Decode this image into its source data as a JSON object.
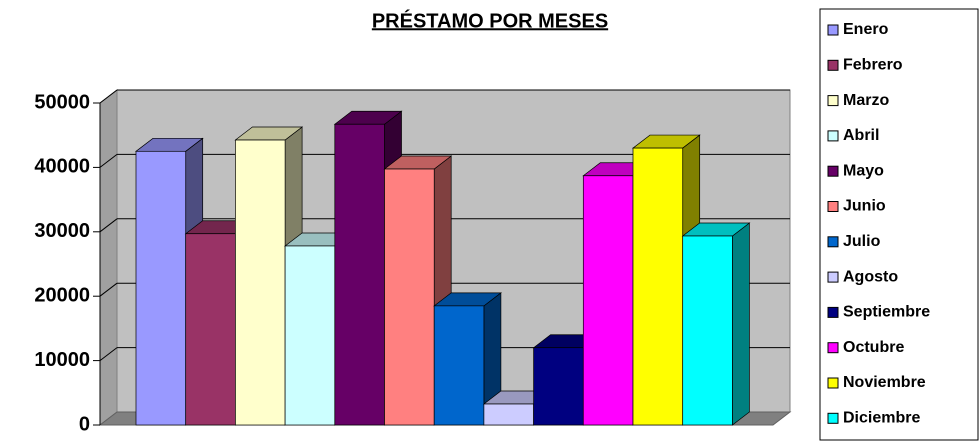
{
  "chart_data": {
    "type": "bar3d",
    "title": "PRÉSTAMO POR MESES",
    "series": [
      {
        "name": "Enero",
        "color": "#9999ff",
        "values": [
          42500
        ]
      },
      {
        "name": "Febrero",
        "color": "#993366",
        "values": [
          29700
        ]
      },
      {
        "name": "Marzo",
        "color": "#ffffcc",
        "values": [
          44250
        ]
      },
      {
        "name": "Abril",
        "color": "#ccffff",
        "values": [
          27800
        ]
      },
      {
        "name": "Mayo",
        "color": "#660066",
        "values": [
          46700
        ]
      },
      {
        "name": "Junio",
        "color": "#ff8080",
        "values": [
          39750
        ]
      },
      {
        "name": "Julio",
        "color": "#0066cc",
        "values": [
          18500
        ]
      },
      {
        "name": "Agosto",
        "color": "#ccccff",
        "values": [
          3260
        ]
      },
      {
        "name": "Septiembre",
        "color": "#000080",
        "values": [
          12000
        ]
      },
      {
        "name": "Octubre",
        "color": "#ff00ff",
        "values": [
          38700
        ]
      },
      {
        "name": "Noviembre",
        "color": "#ffff00",
        "values": [
          43000
        ]
      },
      {
        "name": "Diciembre",
        "color": "#00ffff",
        "values": [
          29350
        ]
      }
    ],
    "ylim": [
      0,
      50000
    ],
    "yticks": [
      0,
      10000,
      20000,
      30000,
      40000,
      50000
    ],
    "grid": true,
    "legend": "right"
  }
}
